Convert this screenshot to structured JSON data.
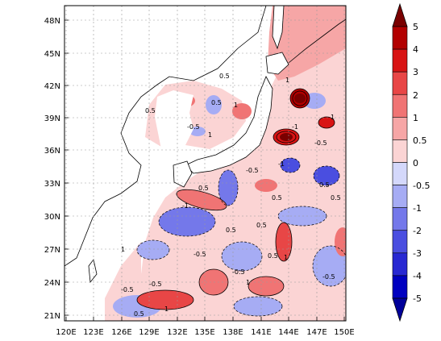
{
  "map": {
    "lon_labels": [
      "120E",
      "123E",
      "126E",
      "129E",
      "132E",
      "135E",
      "138E",
      "141E",
      "144E",
      "147E",
      "150E"
    ],
    "lat_labels": [
      "21N",
      "24N",
      "27N",
      "30N",
      "33N",
      "36N",
      "39N",
      "42N",
      "45N",
      "48N"
    ],
    "grid": "dashed",
    "contour_labels": [
      "0.5",
      "0.5",
      "1",
      "-0.5",
      "1",
      "-1",
      "0.5",
      "-0.5",
      "0.5",
      "1",
      "-1",
      "0.5",
      "1",
      "-0.5",
      "-0.5",
      "-0.5",
      "0.5",
      "1",
      "-0.5",
      "1",
      "-0.5",
      "1",
      "0.5",
      "0.5",
      "-0.5",
      "0.5",
      "1",
      "-1",
      "0.5",
      "0.5"
    ]
  },
  "colorbar": {
    "labels": [
      "5",
      "4",
      "3",
      "2",
      "1",
      "0.5",
      "0",
      "-0.5",
      "-1",
      "-2",
      "-3",
      "-4",
      "-5"
    ],
    "colors": [
      "#7a0000",
      "#b20000",
      "#d81414",
      "#e84646",
      "#f07474",
      "#f6a6a6",
      "#fbd4d4",
      "#d4d8fb",
      "#a6acf4",
      "#7478ea",
      "#4a4ee0",
      "#2828d2",
      "#0000c0",
      "#00009a"
    ]
  }
}
